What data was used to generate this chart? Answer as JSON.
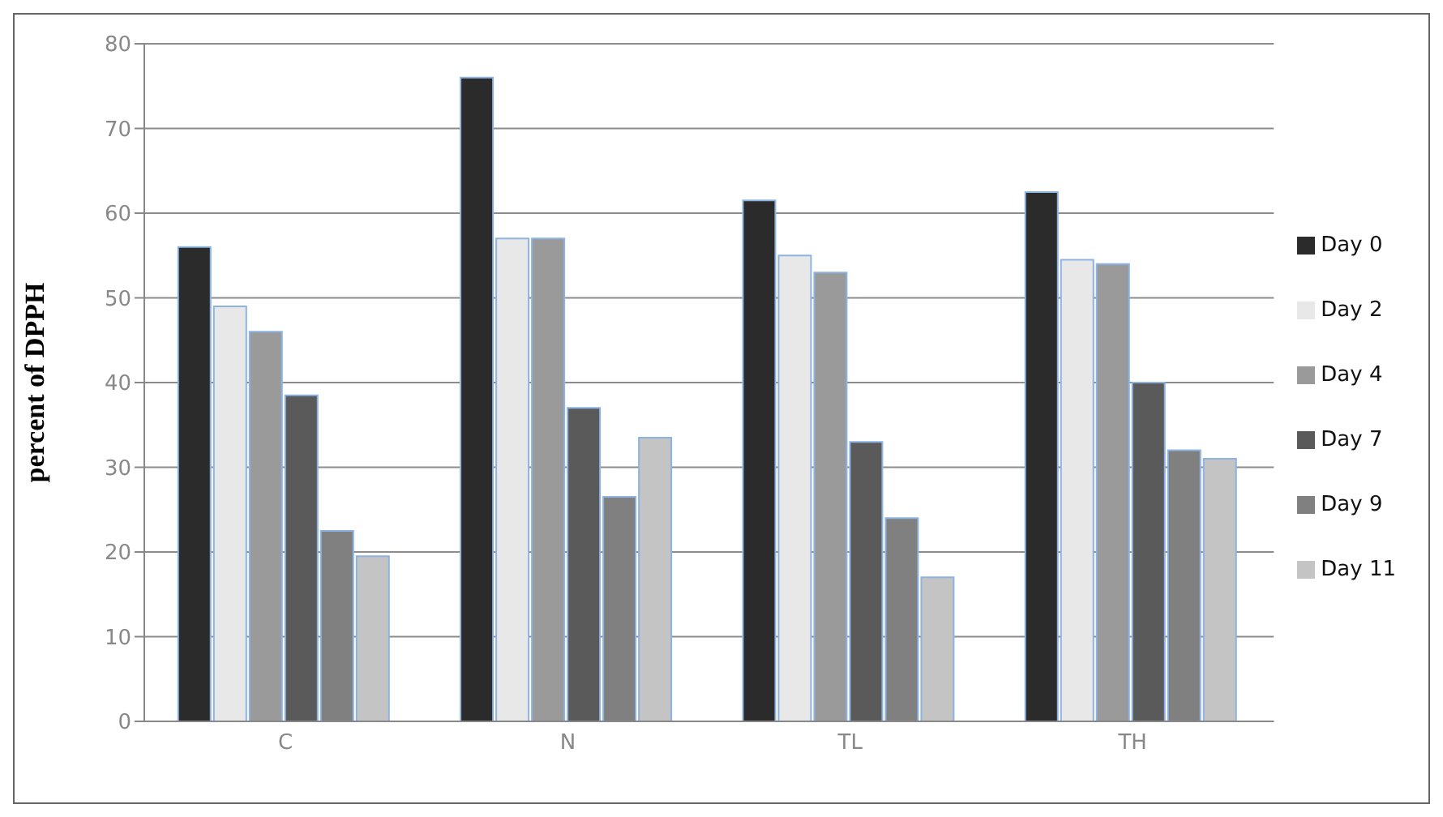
{
  "chart_data": {
    "type": "bar",
    "ylabel": "percent of DPPH",
    "categories": [
      "C",
      "N",
      "TL",
      "TH"
    ],
    "series": [
      {
        "name": "Day 0",
        "color": "#2b2b2b",
        "values": [
          56,
          76,
          61.5,
          62.5
        ]
      },
      {
        "name": "Day 2",
        "color": "#e8e8e8",
        "values": [
          49,
          57,
          55,
          54.5
        ]
      },
      {
        "name": "Day 4",
        "color": "#9a9a9a",
        "values": [
          46,
          57,
          53,
          54
        ]
      },
      {
        "name": "Day 7",
        "color": "#5a5a5a",
        "values": [
          38.5,
          37,
          33,
          40
        ]
      },
      {
        "name": "Day 9",
        "color": "#808080",
        "values": [
          22.5,
          26.5,
          24,
          32
        ]
      },
      {
        "name": "Day 11",
        "color": "#c4c4c4",
        "values": [
          19.5,
          33.5,
          17,
          31
        ]
      }
    ],
    "ylim": [
      0,
      80
    ],
    "yticks": [
      0,
      10,
      20,
      30,
      40,
      50,
      60,
      70,
      80
    ],
    "grid": "y",
    "legend": "right"
  }
}
